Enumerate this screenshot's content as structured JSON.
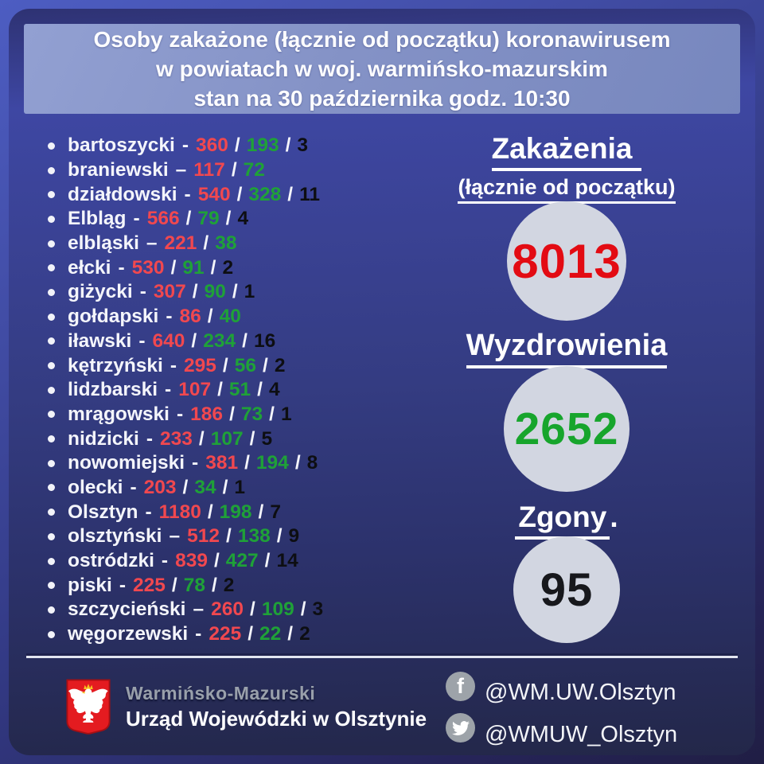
{
  "header": {
    "line1": "Osoby zakażone (łącznie od początku) koronawirusem",
    "line2": "w powiatach w woj. warmińsko-mazurskim",
    "line3": "stan na 30 października godz. 10:30"
  },
  "list": {
    "separator": "/"
  },
  "counties": [
    {
      "name": "bartoszycki",
      "dash": "-",
      "infected": "360",
      "recovered": "193",
      "deaths": "3"
    },
    {
      "name": "braniewski",
      "dash": "–",
      "infected": "117",
      "recovered": "72",
      "deaths": null
    },
    {
      "name": "działdowski",
      "dash": "-",
      "infected": "540",
      "recovered": "328",
      "deaths": "11"
    },
    {
      "name": "Elbląg",
      "dash": "-",
      "infected": "566",
      "recovered": "79",
      "deaths": "4"
    },
    {
      "name": "elbląski",
      "dash": "–",
      "infected": "221",
      "recovered": "38",
      "deaths": null
    },
    {
      "name": "ełcki",
      "dash": "-",
      "infected": "530",
      "recovered": "91",
      "deaths": "2"
    },
    {
      "name": "giżycki",
      "dash": "-",
      "infected": "307",
      "recovered": "90",
      "deaths": "1"
    },
    {
      "name": "gołdapski",
      "dash": "-",
      "infected": "86",
      "recovered": "40",
      "deaths": null
    },
    {
      "name": "iławski",
      "dash": "-",
      "infected": "640",
      "recovered": "234",
      "deaths": "16"
    },
    {
      "name": "kętrzyński",
      "dash": "-",
      "infected": "295",
      "recovered": "56",
      "deaths": "2"
    },
    {
      "name": "lidzbarski",
      "dash": "-",
      "infected": "107",
      "recovered": "51",
      "deaths": "4"
    },
    {
      "name": "mrągowski",
      "dash": "-",
      "infected": "186",
      "recovered": "73",
      "deaths": "1"
    },
    {
      "name": "nidzicki",
      "dash": "-",
      "infected": "233",
      "recovered": "107",
      "deaths": "5"
    },
    {
      "name": "nowomiejski",
      "dash": "-",
      "infected": "381",
      "recovered": "194",
      "deaths": "8"
    },
    {
      "name": "olecki",
      "dash": "-",
      "infected": "203",
      "recovered": "34",
      "deaths": "1"
    },
    {
      "name": "Olsztyn",
      "dash": "-",
      "infected": "1180",
      "recovered": "198",
      "deaths": "7"
    },
    {
      "name": "olsztyński",
      "dash": "–",
      "infected": "512",
      "recovered": "138",
      "deaths": "9"
    },
    {
      "name": "ostródzki",
      "dash": "-",
      "infected": "839",
      "recovered": "427",
      "deaths": "14"
    },
    {
      "name": "piski",
      "dash": "-",
      "infected": "225",
      "recovered": "78",
      "deaths": "2"
    },
    {
      "name": "szczycieński",
      "dash": "–",
      "infected": "260",
      "recovered": "109",
      "deaths": "3"
    },
    {
      "name": "węgorzewski",
      "dash": "-",
      "infected": "225",
      "recovered": "22",
      "deaths": "2"
    }
  ],
  "stats": {
    "infections": {
      "title": "Zakażenia",
      "subtitle": "(łącznie od początku)",
      "value": "8013"
    },
    "recoveries": {
      "title": "Wyzdrowienia",
      "value": "2652"
    },
    "deaths": {
      "title": "Zgony",
      "suffix": ".",
      "value": "95"
    }
  },
  "footer": {
    "org_line1": "Warmińsko-Mazurski",
    "org_line2": "Urząd Wojewódzki w Olsztynie",
    "facebook_handle": "@WM.UW.Olsztyn",
    "twitter_handle": "@WMUW_Olsztyn",
    "facebook_icon": "f"
  },
  "colors": {
    "infected": "#f1484f",
    "recovered": "#1fa138",
    "deaths": "#0d0e12",
    "big_infected": "#e30b13",
    "big_recovered": "#17a52c",
    "big_deaths": "#17181c",
    "circle_bg": "#d2d6e1",
    "header_panel": "#8492c6"
  }
}
